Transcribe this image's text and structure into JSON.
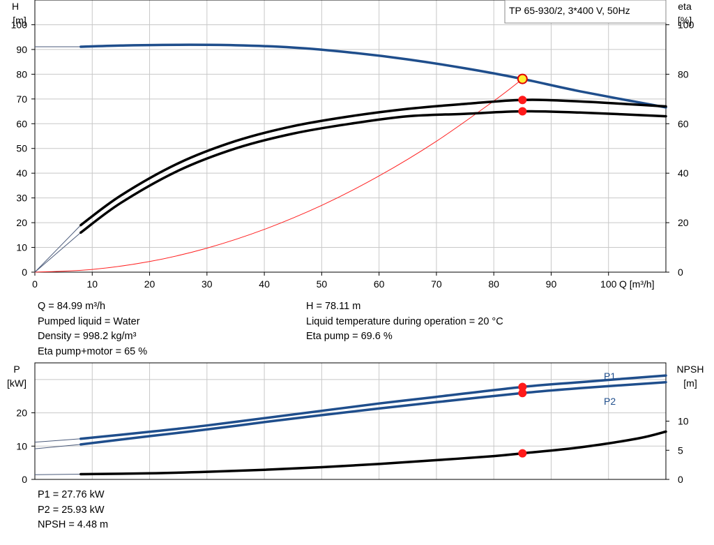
{
  "chart_data": [
    {
      "type": "line",
      "title": "TP 65-930/2, 3*400 V, 50Hz",
      "xlabel": "Q [m³/h]",
      "ylabel_left": [
        "H",
        "[m]"
      ],
      "ylabel_right": [
        "eta",
        "[%]"
      ],
      "xlim": [
        0,
        110
      ],
      "ylim_left": [
        0,
        110
      ],
      "ylim_right": [
        0,
        110
      ],
      "grid": true,
      "x_ticks": [
        0,
        10,
        20,
        30,
        40,
        50,
        60,
        70,
        80,
        90,
        100
      ],
      "y_left_ticks": [
        0,
        10,
        20,
        30,
        40,
        50,
        60,
        70,
        80,
        90,
        100
      ],
      "y_right_ticks": [
        0,
        20,
        40,
        60,
        80,
        100
      ],
      "series": [
        {
          "role": "head",
          "axis": "left",
          "color": "#1f4e8c",
          "x": [
            8,
            15,
            25,
            35,
            45,
            55,
            65,
            75,
            85,
            95,
            110
          ],
          "y": [
            91.1,
            91.6,
            91.9,
            91.7,
            90.8,
            88.8,
            86.0,
            82.4,
            78.1,
            73.1,
            66.6
          ],
          "lead_in": {
            "x": [
              0,
              8
            ],
            "y": [
              91.1,
              91.1
            ]
          }
        },
        {
          "role": "system",
          "axis": "left",
          "color": "#ff2020",
          "x": [
            0,
            10,
            20,
            30,
            40,
            50,
            60,
            70,
            80,
            85
          ],
          "y": [
            0,
            1.1,
            4.3,
            9.7,
            17.3,
            27.0,
            38.9,
            52.9,
            69.2,
            78.1
          ]
        },
        {
          "role": "eta-pump",
          "axis": "right",
          "color": "#000000",
          "x": [
            8,
            15,
            25,
            35,
            45,
            55,
            65,
            75,
            85,
            95,
            110
          ],
          "y": [
            19,
            31,
            44,
            53,
            59,
            63,
            66,
            68,
            69.6,
            69,
            67
          ],
          "lead_in": {
            "x": [
              0,
              8
            ],
            "y": [
              0,
              19
            ]
          }
        },
        {
          "role": "eta-pump+motor",
          "axis": "right",
          "color": "#000000",
          "x": [
            8,
            15,
            25,
            35,
            45,
            55,
            65,
            75,
            85,
            95,
            110
          ],
          "y": [
            16,
            28,
            41,
            50,
            56,
            60,
            63,
            64,
            65,
            64.5,
            63
          ],
          "lead_in": {
            "x": [
              0,
              8
            ],
            "y": [
              0,
              16
            ]
          }
        }
      ],
      "operating_points": [
        {
          "axis": "left",
          "x": 85,
          "y": 78.1,
          "style": "yellow"
        },
        {
          "axis": "right",
          "x": 85,
          "y": 69.6,
          "style": "red"
        },
        {
          "axis": "right",
          "x": 85,
          "y": 65,
          "style": "red"
        }
      ]
    },
    {
      "type": "line",
      "ylabel_left": [
        "P",
        "[kW]"
      ],
      "ylabel_right": [
        "NPSH",
        "[m]"
      ],
      "xlim": [
        0,
        110
      ],
      "ylim_left": [
        0,
        35
      ],
      "ylim_right": [
        0,
        20
      ],
      "grid": true,
      "y_left_ticks": [
        0,
        10,
        20
      ],
      "y_right_ticks": [
        0,
        5,
        10
      ],
      "series": [
        {
          "name": "P1",
          "axis": "left",
          "color": "#1f4e8c",
          "x": [
            8,
            20,
            30,
            40,
            50,
            60,
            70,
            85,
            95,
            110
          ],
          "y": [
            12.2,
            14.3,
            16.2,
            18.4,
            20.6,
            22.8,
            24.8,
            27.76,
            29.2,
            31.2
          ],
          "lead_in": {
            "x": [
              0,
              8
            ],
            "y": [
              11.2,
              12.2
            ]
          }
        },
        {
          "name": "P2",
          "axis": "left",
          "color": "#1f4e8c",
          "x": [
            8,
            20,
            30,
            40,
            50,
            60,
            70,
            85,
            95,
            110
          ],
          "y": [
            10.5,
            13.0,
            15.0,
            17.2,
            19.3,
            21.3,
            23.2,
            25.93,
            27.4,
            29.2
          ],
          "lead_in": {
            "x": [
              0,
              8
            ],
            "y": [
              9.2,
              10.5
            ]
          }
        },
        {
          "role": "npsh",
          "axis": "right",
          "color": "#000000",
          "x": [
            8,
            20,
            30,
            40,
            50,
            60,
            70,
            80,
            85,
            95,
            105,
            110
          ],
          "y": [
            0.9,
            1.05,
            1.3,
            1.65,
            2.1,
            2.65,
            3.3,
            4.0,
            4.48,
            5.5,
            7.0,
            8.2
          ],
          "lead_in": {
            "x": [
              0,
              8
            ],
            "y": [
              0.8,
              0.9
            ]
          }
        }
      ],
      "operating_points": [
        {
          "axis": "left",
          "x": 85,
          "y": 27.76,
          "style": "red"
        },
        {
          "axis": "left",
          "x": 85,
          "y": 25.93,
          "style": "red"
        },
        {
          "axis": "right",
          "x": 85,
          "y": 4.48,
          "style": "red"
        }
      ]
    }
  ],
  "info_top": {
    "left": [
      "Q = 84.99 m³/h",
      "Pumped liquid = Water",
      "Density = 998.2 kg/m³",
      "Eta pump+motor = 65 %"
    ],
    "right": [
      "H = 78.11 m",
      "Liquid temperature during operation = 20 °C",
      "Eta pump = 69.6 %"
    ]
  },
  "info_bottom": [
    "P1 = 27.76 kW",
    "P2 = 25.93 kW",
    "NPSH = 4.48 m"
  ]
}
